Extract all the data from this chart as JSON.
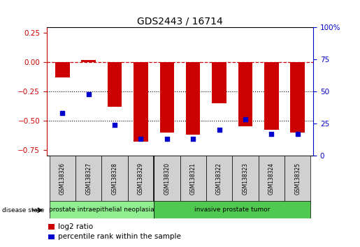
{
  "title": "GDS2443 / 16714",
  "samples": [
    "GSM138326",
    "GSM138327",
    "GSM138328",
    "GSM138329",
    "GSM138320",
    "GSM138321",
    "GSM138322",
    "GSM138323",
    "GSM138324",
    "GSM138325"
  ],
  "log2_ratio": [
    -0.13,
    0.02,
    -0.38,
    -0.68,
    -0.6,
    -0.62,
    -0.35,
    -0.55,
    -0.58,
    -0.6
  ],
  "percentile_rank": [
    33,
    48,
    24,
    13,
    13,
    13,
    20,
    28,
    17,
    17
  ],
  "bar_color": "#cc0000",
  "dot_color": "#0000cc",
  "ylim_left": [
    -0.8,
    0.3
  ],
  "ylim_right": [
    0,
    100
  ],
  "yticks_left": [
    -0.75,
    -0.5,
    -0.25,
    0,
    0.25
  ],
  "yticks_right": [
    0,
    25,
    50,
    75,
    100
  ],
  "hline_y": 0,
  "dotted_lines": [
    -0.25,
    -0.5
  ],
  "disease_groups": [
    {
      "label": "prostate intraepithelial neoplasia",
      "start": 0,
      "end": 4,
      "color": "#90ee90"
    },
    {
      "label": "invasive prostate tumor",
      "start": 4,
      "end": 10,
      "color": "#4fc94f"
    }
  ],
  "legend_items": [
    {
      "label": "log2 ratio",
      "color": "#cc0000"
    },
    {
      "label": "percentile rank within the sample",
      "color": "#0000cc"
    }
  ],
  "disease_state_label": "disease state",
  "bar_width": 0.55,
  "fig_width": 5.15,
  "fig_height": 3.54,
  "n_samples": 10
}
